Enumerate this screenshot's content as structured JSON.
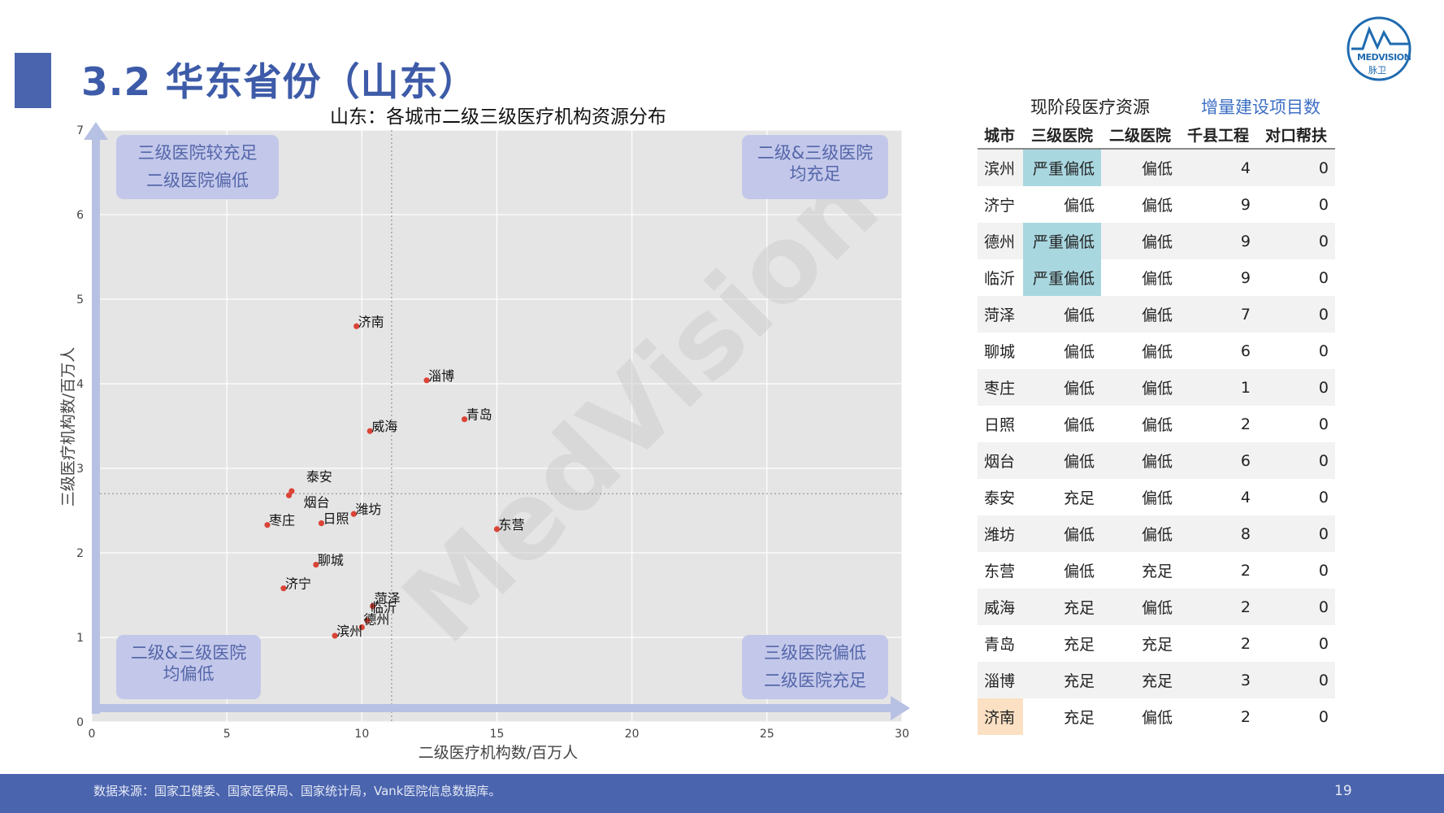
{
  "page": {
    "title": "3.2 华东省份（山东）",
    "page_number": "19"
  },
  "logo": {
    "text": "MEDVISION",
    "sub": "脉卫"
  },
  "watermark": "MedVision",
  "footer": {
    "source": "数据来源：国家卫健委、国家医保局、国家统计局，Vank医院信息数据库。"
  },
  "colors": {
    "accent": "#4a64ae",
    "point": "#d94436",
    "quadrant_box": "#c3c8ea",
    "highlight_blue": "#a9d7e0",
    "highlight_orange": "#fbe0c3"
  },
  "chart_data": {
    "type": "scatter",
    "title": "山东：各城市二级三级医疗机构资源分布",
    "xlabel": "二级医疗机构数/百万人",
    "ylabel": "三级医疗机构数/百万人",
    "xlim": [
      0,
      30
    ],
    "ylim": [
      0,
      7
    ],
    "xticks": [
      0,
      5,
      10,
      15,
      20,
      25,
      30
    ],
    "yticks": [
      0,
      1,
      2,
      3,
      4,
      5,
      6,
      7
    ],
    "reference_lines": {
      "x": 11.1,
      "y": 2.7
    },
    "grid": true,
    "quadrants": [
      {
        "pos": "top-left",
        "lines": [
          "三级医院较充足",
          "二级医院偏低"
        ]
      },
      {
        "pos": "top-right",
        "lines": [
          "二级&三级医院",
          "均充足"
        ]
      },
      {
        "pos": "bottom-left",
        "lines": [
          "二级&三级医院",
          "均偏低"
        ]
      },
      {
        "pos": "bottom-right",
        "lines": [
          "三级医院偏低",
          "二级医院充足"
        ]
      }
    ],
    "points": [
      {
        "name": "济南",
        "x": 9.8,
        "y": 4.68
      },
      {
        "name": "淄博",
        "x": 12.4,
        "y": 4.04
      },
      {
        "name": "青岛",
        "x": 13.8,
        "y": 3.58
      },
      {
        "name": "威海",
        "x": 10.3,
        "y": 3.44
      },
      {
        "name": "泰安",
        "x": 7.4,
        "y": 2.73
      },
      {
        "name": "烟台",
        "x": 7.3,
        "y": 2.68
      },
      {
        "name": "潍坊",
        "x": 9.7,
        "y": 2.46
      },
      {
        "name": "日照",
        "x": 8.5,
        "y": 2.35
      },
      {
        "name": "枣庄",
        "x": 6.5,
        "y": 2.33
      },
      {
        "name": "东营",
        "x": 15.0,
        "y": 2.28
      },
      {
        "name": "聊城",
        "x": 8.3,
        "y": 1.86
      },
      {
        "name": "济宁",
        "x": 7.1,
        "y": 1.58
      },
      {
        "name": "菏泽",
        "x": 10.4,
        "y": 1.37
      },
      {
        "name": "临沂",
        "x": 10.2,
        "y": 1.2
      },
      {
        "name": "德州",
        "x": 10.0,
        "y": 1.12
      },
      {
        "name": "滨州",
        "x": 9.0,
        "y": 1.02
      }
    ]
  },
  "table": {
    "group_headers": {
      "current": "现阶段医疗资源",
      "increment": "增量建设项目数"
    },
    "headers": [
      "城市",
      "三级医院",
      "二级医院",
      "千县工程",
      "对口帮扶"
    ],
    "rows": [
      {
        "city": "滨州",
        "t3": "严重偏低",
        "t2": "偏低",
        "n1": "4",
        "n2": "0",
        "hl": "blue"
      },
      {
        "city": "济宁",
        "t3": "偏低",
        "t2": "偏低",
        "n1": "9",
        "n2": "0",
        "hl": ""
      },
      {
        "city": "德州",
        "t3": "严重偏低",
        "t2": "偏低",
        "n1": "9",
        "n2": "0",
        "hl": "blue"
      },
      {
        "city": "临沂",
        "t3": "严重偏低",
        "t2": "偏低",
        "n1": "9",
        "n2": "0",
        "hl": "blue"
      },
      {
        "city": "菏泽",
        "t3": "偏低",
        "t2": "偏低",
        "n1": "7",
        "n2": "0",
        "hl": ""
      },
      {
        "city": "聊城",
        "t3": "偏低",
        "t2": "偏低",
        "n1": "6",
        "n2": "0",
        "hl": ""
      },
      {
        "city": "枣庄",
        "t3": "偏低",
        "t2": "偏低",
        "n1": "1",
        "n2": "0",
        "hl": ""
      },
      {
        "city": "日照",
        "t3": "偏低",
        "t2": "偏低",
        "n1": "2",
        "n2": "0",
        "hl": ""
      },
      {
        "city": "烟台",
        "t3": "偏低",
        "t2": "偏低",
        "n1": "6",
        "n2": "0",
        "hl": ""
      },
      {
        "city": "泰安",
        "t3": "充足",
        "t2": "偏低",
        "n1": "4",
        "n2": "0",
        "hl": ""
      },
      {
        "city": "潍坊",
        "t3": "偏低",
        "t2": "偏低",
        "n1": "8",
        "n2": "0",
        "hl": ""
      },
      {
        "city": "东营",
        "t3": "偏低",
        "t2": "充足",
        "n1": "2",
        "n2": "0",
        "hl": ""
      },
      {
        "city": "威海",
        "t3": "充足",
        "t2": "偏低",
        "n1": "2",
        "n2": "0",
        "hl": ""
      },
      {
        "city": "青岛",
        "t3": "充足",
        "t2": "充足",
        "n1": "2",
        "n2": "0",
        "hl": ""
      },
      {
        "city": "淄博",
        "t3": "充足",
        "t2": "充足",
        "n1": "3",
        "n2": "0",
        "hl": ""
      },
      {
        "city": "济南",
        "t3": "充足",
        "t2": "偏低",
        "n1": "2",
        "n2": "0",
        "hl": "orange"
      }
    ]
  }
}
